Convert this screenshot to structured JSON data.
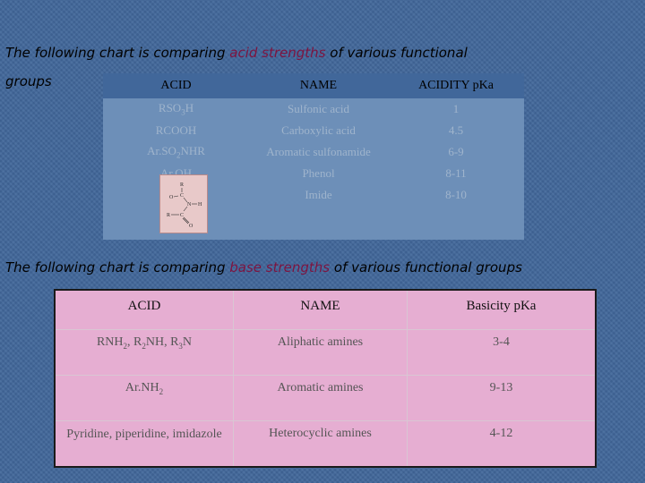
{
  "acid_heading": {
    "before": "The following chart is comparing ",
    "highlight": "acid strengths",
    "after": " of various functional",
    "line2": "groups"
  },
  "acid_table": {
    "headers": [
      "ACID",
      "NAME",
      "ACIDITY pKa"
    ],
    "rows": [
      {
        "acid_main": "RSO",
        "acid_sub": "3",
        "acid_tail": "H",
        "name": "Sulfonic acid",
        "pka": "1"
      },
      {
        "acid_main": "RCOOH",
        "acid_sub": "",
        "acid_tail": "",
        "name": "Carboxylic acid",
        "pka": "4.5"
      },
      {
        "acid_main": "Ar.SO",
        "acid_sub": "2",
        "acid_tail": "NHR",
        "name": "Aromatic sulfonamide",
        "pka": "6-9"
      },
      {
        "acid_main": "Ar.OH",
        "acid_sub": "",
        "acid_tail": "",
        "name": "Phenol",
        "pka": "8-11"
      },
      {
        "acid_main": "",
        "acid_sub": "",
        "acid_tail": "",
        "name": "Imide",
        "pka": "8-10"
      }
    ]
  },
  "imide_structure": {
    "labels": [
      "R",
      "C",
      "O",
      "N",
      "H",
      "R",
      "C",
      "O"
    ]
  },
  "base_heading": {
    "before": "The following chart is comparing ",
    "highlight": "base strengths",
    "after": " of various functional groups"
  },
  "base_table": {
    "headers": [
      "ACID",
      "NAME",
      "Basicity pKa"
    ],
    "rows": [
      {
        "acid_parts": [
          "RNH",
          "2",
          ", R",
          "2",
          "NH, R",
          "3",
          "N"
        ],
        "name": "Aliphatic amines",
        "pka": "3-4"
      },
      {
        "acid_parts": [
          "Ar.NH",
          "2"
        ],
        "name": "Aromatic amines",
        "pka": "9-13"
      },
      {
        "acid_text": "Pyridine, piperidine, imidazole",
        "name": "Heterocyclic amines",
        "pka": "4-12"
      }
    ]
  },
  "colors": {
    "background": "#41679a",
    "highlight": "#7d1440",
    "acid_row_bg": "#6d8fb8",
    "base_table_bg": "#e6aed2"
  }
}
